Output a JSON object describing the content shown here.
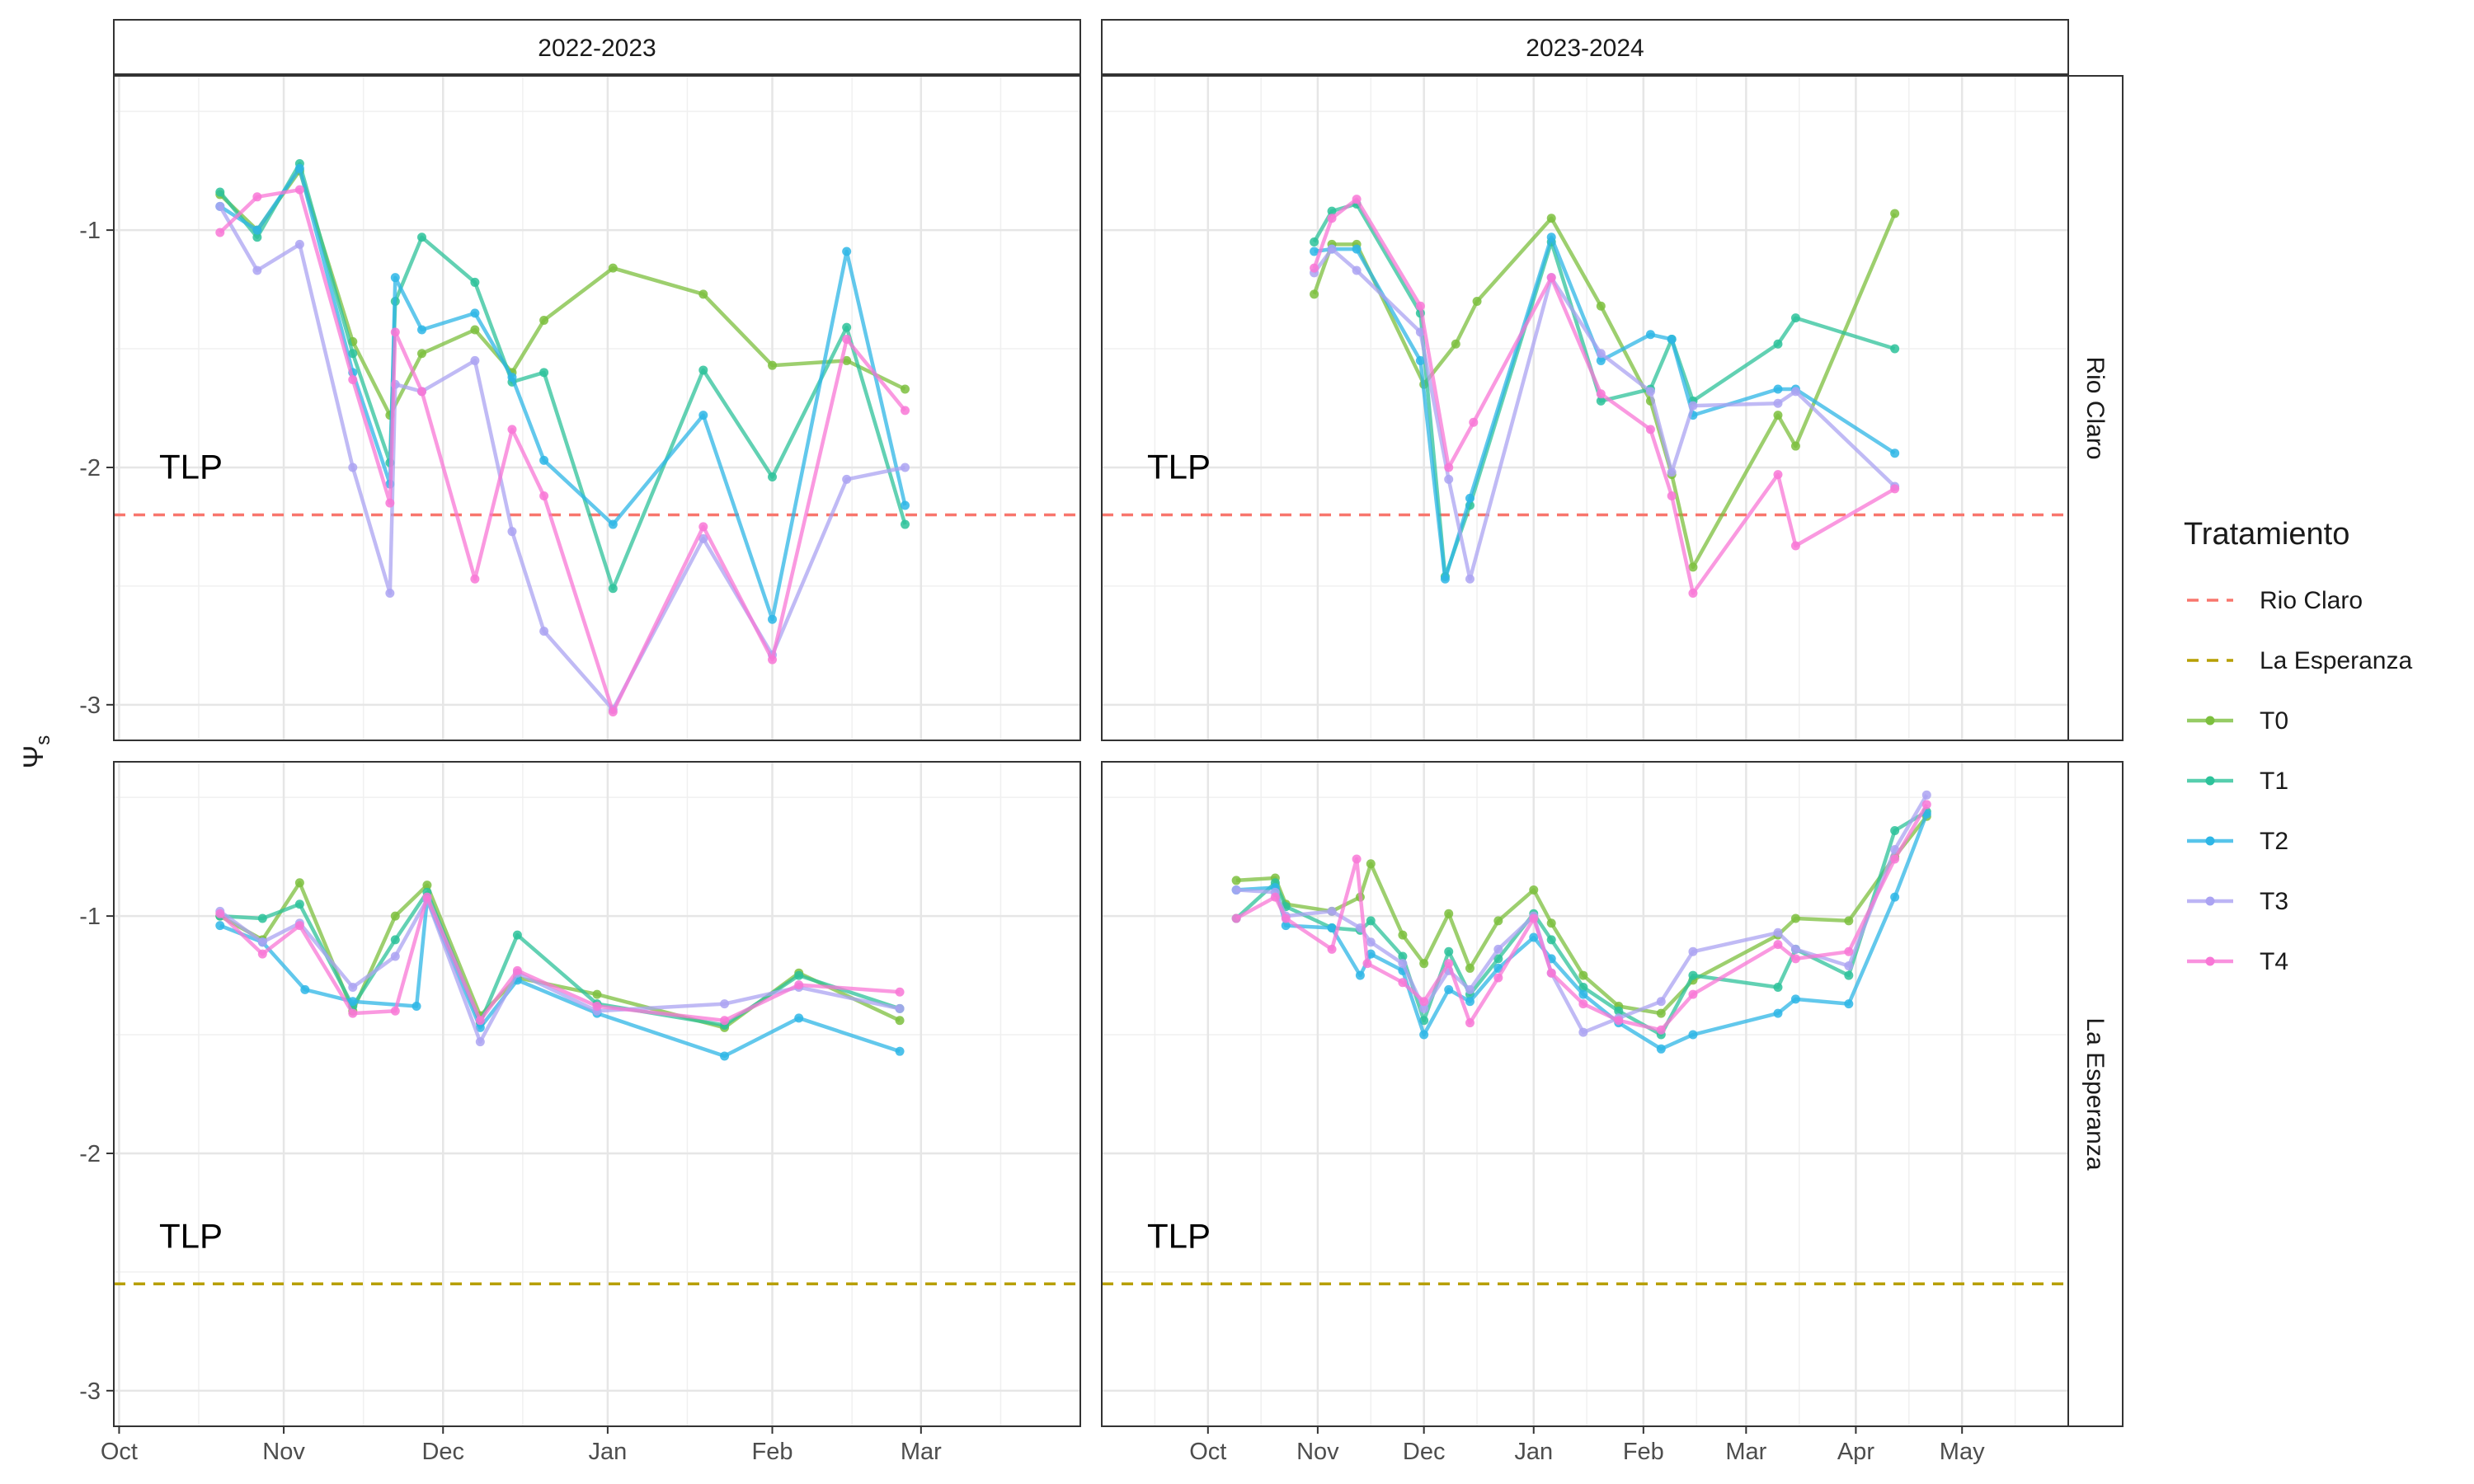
{
  "chart_data": {
    "type": "line",
    "ylabel_symbol": "Ψ",
    "ylabel_subscript": "s",
    "xlabel": "",
    "facet_columns": [
      {
        "label": "2022-2023",
        "ticks": [
          "Oct",
          "Nov",
          "Dec",
          "Jan",
          "Feb",
          "Mar"
        ],
        "xlim": [
          "2022-09-30",
          "2023-03-31"
        ]
      },
      {
        "label": "2023-2024",
        "ticks": [
          "Oct",
          "Nov",
          "Dec",
          "Jan",
          "Feb",
          "Mar",
          "Apr",
          "May"
        ],
        "xlim": [
          "2023-09-01",
          "2024-05-31"
        ]
      }
    ],
    "facet_rows": [
      {
        "label": "Rio Claro",
        "ylim": [
          -3.15,
          -0.35
        ],
        "yticks": [
          -1,
          -2,
          -3
        ],
        "tlp": -2.2
      },
      {
        "label": "La Esperanza",
        "ylim": [
          -3.15,
          -0.35
        ],
        "yticks": [
          -1,
          -2,
          -3
        ],
        "tlp": -2.55
      }
    ],
    "tlp_label": "TLP",
    "legend": {
      "title": "Tratamiento",
      "position": "right",
      "threshold_entries": [
        {
          "name": "Rio Claro",
          "color": "#F8766D"
        },
        {
          "name": "La Esperanza",
          "color": "#B79F00"
        }
      ],
      "series_entries": [
        {
          "name": "T0",
          "color": "#7CBF3E"
        },
        {
          "name": "T1",
          "color": "#2DC29A"
        },
        {
          "name": "T2",
          "color": "#2EB6E6"
        },
        {
          "name": "T3",
          "color": "#ABA3F2"
        },
        {
          "name": "T4",
          "color": "#F877D6"
        }
      ]
    },
    "panels": [
      {
        "row": 0,
        "col": 0,
        "series": [
          {
            "name": "T0",
            "x": [
              "2022-10-20",
              "2022-10-27",
              "2022-11-04",
              "2022-11-14",
              "2022-11-21",
              "2022-11-27",
              "2022-12-07",
              "2022-12-14",
              "2022-12-20",
              "2023-01-02",
              "2023-01-19",
              "2023-02-01",
              "2023-02-15",
              "2023-02-26"
            ],
            "y": [
              -0.85,
              -1.0,
              -0.75,
              -1.47,
              -1.78,
              -1.52,
              -1.42,
              -1.6,
              -1.38,
              -1.16,
              -1.27,
              -1.57,
              -1.55,
              -1.67
            ]
          },
          {
            "name": "T1",
            "x": [
              "2022-10-20",
              "2022-10-27",
              "2022-11-04",
              "2022-11-14",
              "2022-11-21",
              "2022-11-22",
              "2022-11-27",
              "2022-12-07",
              "2022-12-14",
              "2022-12-20",
              "2023-01-02",
              "2023-01-19",
              "2023-02-01",
              "2023-02-15",
              "2023-02-26"
            ],
            "y": [
              -0.84,
              -1.03,
              -0.72,
              -1.52,
              -1.98,
              -1.3,
              -1.03,
              -1.22,
              -1.64,
              -1.6,
              -2.51,
              -1.59,
              -2.04,
              -1.41,
              -2.24
            ]
          },
          {
            "name": "T2",
            "x": [
              "2022-10-20",
              "2022-10-27",
              "2022-11-04",
              "2022-11-14",
              "2022-11-21",
              "2022-11-22",
              "2022-11-27",
              "2022-12-07",
              "2022-12-14",
              "2022-12-20",
              "2023-01-02",
              "2023-01-19",
              "2023-02-01",
              "2023-02-15",
              "2023-02-26"
            ],
            "y": [
              -0.9,
              -1.0,
              -0.74,
              -1.6,
              -2.07,
              -1.2,
              -1.42,
              -1.35,
              -1.62,
              -1.97,
              -2.24,
              -1.78,
              -2.64,
              -1.09,
              -2.16
            ]
          },
          {
            "name": "T3",
            "x": [
              "2022-10-20",
              "2022-10-27",
              "2022-11-04",
              "2022-11-14",
              "2022-11-21",
              "2022-11-22",
              "2022-11-27",
              "2022-12-07",
              "2022-12-14",
              "2022-12-20",
              "2023-01-02",
              "2023-01-19",
              "2023-02-01",
              "2023-02-15",
              "2023-02-26"
            ],
            "y": [
              -0.9,
              -1.17,
              -1.06,
              -2.0,
              -2.53,
              -1.65,
              -1.68,
              -1.55,
              -2.27,
              -2.69,
              -3.02,
              -2.3,
              -2.79,
              -2.05,
              -2.0
            ]
          },
          {
            "name": "T4",
            "x": [
              "2022-10-20",
              "2022-10-27",
              "2022-11-04",
              "2022-11-14",
              "2022-11-21",
              "2022-11-22",
              "2022-11-27",
              "2022-12-07",
              "2022-12-14",
              "2022-12-20",
              "2023-01-02",
              "2023-01-19",
              "2023-02-01",
              "2023-02-15",
              "2023-02-26"
            ],
            "y": [
              -1.01,
              -0.86,
              -0.83,
              -1.63,
              -2.15,
              -1.43,
              -1.68,
              -2.47,
              -1.84,
              -2.12,
              -3.03,
              -2.25,
              -2.81,
              -1.46,
              -1.76
            ]
          }
        ]
      },
      {
        "row": 0,
        "col": 1,
        "series": [
          {
            "name": "T0",
            "x": [
              "2023-10-31",
              "2023-11-05",
              "2023-11-12",
              "2023-12-01",
              "2023-12-10",
              "2023-12-16",
              "2024-01-06",
              "2024-01-20",
              "2024-02-03",
              "2024-02-09",
              "2024-02-15",
              "2024-03-10",
              "2024-03-15",
              "2024-04-12"
            ],
            "y": [
              -1.27,
              -1.06,
              -1.06,
              -1.65,
              -1.48,
              -1.3,
              -0.95,
              -1.32,
              -1.72,
              -2.03,
              -2.42,
              -1.78,
              -1.91,
              -0.93
            ]
          },
          {
            "name": "T1",
            "x": [
              "2023-10-31",
              "2023-11-05",
              "2023-11-12",
              "2023-11-30",
              "2023-12-07",
              "2023-12-14",
              "2024-01-06",
              "2024-01-20",
              "2024-02-03",
              "2024-02-09",
              "2024-02-15",
              "2024-03-10",
              "2024-03-15",
              "2024-04-12"
            ],
            "y": [
              -1.05,
              -0.92,
              -0.89,
              -1.35,
              -2.46,
              -2.16,
              -1.05,
              -1.72,
              -1.67,
              -1.46,
              -1.72,
              -1.48,
              -1.37,
              -1.5
            ]
          },
          {
            "name": "T2",
            "x": [
              "2023-10-31",
              "2023-11-05",
              "2023-11-12",
              "2023-11-30",
              "2023-12-07",
              "2023-12-14",
              "2024-01-06",
              "2024-01-20",
              "2024-02-03",
              "2024-02-09",
              "2024-02-15",
              "2024-03-10",
              "2024-03-15",
              "2024-04-12"
            ],
            "y": [
              -1.09,
              -1.08,
              -1.08,
              -1.55,
              -2.47,
              -2.13,
              -1.03,
              -1.55,
              -1.44,
              -1.46,
              -1.78,
              -1.67,
              -1.67,
              -1.94
            ]
          },
          {
            "name": "T3",
            "x": [
              "2023-10-31",
              "2023-11-05",
              "2023-11-12",
              "2023-11-30",
              "2023-12-08",
              "2023-12-14",
              "2024-01-06",
              "2024-01-20",
              "2024-02-03",
              "2024-02-09",
              "2024-02-15",
              "2024-03-10",
              "2024-03-15",
              "2024-04-12"
            ],
            "y": [
              -1.18,
              -1.08,
              -1.17,
              -1.43,
              -2.05,
              -2.47,
              -1.2,
              -1.52,
              -1.68,
              -2.02,
              -1.74,
              -1.73,
              -1.68,
              -2.08
            ]
          },
          {
            "name": "T4",
            "x": [
              "2023-10-31",
              "2023-11-05",
              "2023-11-12",
              "2023-11-30",
              "2023-12-08",
              "2023-12-15",
              "2024-01-06",
              "2024-01-20",
              "2024-02-03",
              "2024-02-09",
              "2024-02-15",
              "2024-03-10",
              "2024-03-15",
              "2024-04-12"
            ],
            "y": [
              -1.16,
              -0.95,
              -0.87,
              -1.32,
              -2.0,
              -1.81,
              -1.2,
              -1.69,
              -1.84,
              -2.12,
              -2.53,
              -2.03,
              -2.33,
              -2.09
            ]
          }
        ]
      },
      {
        "row": 1,
        "col": 0,
        "series": [
          {
            "name": "T0",
            "x": [
              "2022-10-20",
              "2022-10-28",
              "2022-11-04",
              "2022-11-14",
              "2022-11-22",
              "2022-11-28",
              "2022-12-08",
              "2022-12-15",
              "2022-12-30",
              "2023-01-23",
              "2023-02-06",
              "2023-02-25"
            ],
            "y": [
              -1.0,
              -1.1,
              -0.86,
              -1.4,
              -1.0,
              -0.87,
              -1.42,
              -1.26,
              -1.33,
              -1.47,
              -1.24,
              -1.44
            ]
          },
          {
            "name": "T1",
            "x": [
              "2022-10-20",
              "2022-10-28",
              "2022-11-04",
              "2022-11-14",
              "2022-11-22",
              "2022-11-28",
              "2022-12-08",
              "2022-12-15",
              "2022-12-30",
              "2023-01-23",
              "2023-02-06",
              "2023-02-25"
            ],
            "y": [
              -1.0,
              -1.01,
              -0.95,
              -1.38,
              -1.1,
              -0.9,
              -1.45,
              -1.08,
              -1.37,
              -1.46,
              -1.25,
              -1.39
            ]
          },
          {
            "name": "T2",
            "x": [
              "2022-10-20",
              "2022-10-28",
              "2022-11-05",
              "2022-11-14",
              "2022-11-26",
              "2022-11-28",
              "2022-12-08",
              "2022-12-15",
              "2022-12-30",
              "2023-01-23",
              "2023-02-06",
              "2023-02-25"
            ],
            "y": [
              -1.04,
              -1.11,
              -1.31,
              -1.36,
              -1.38,
              -0.93,
              -1.47,
              -1.27,
              -1.41,
              -1.59,
              -1.43,
              -1.57
            ]
          },
          {
            "name": "T3",
            "x": [
              "2022-10-20",
              "2022-10-28",
              "2022-11-04",
              "2022-11-14",
              "2022-11-22",
              "2022-11-28",
              "2022-12-08",
              "2022-12-15",
              "2022-12-30",
              "2023-01-23",
              "2023-02-06",
              "2023-02-25"
            ],
            "y": [
              -0.98,
              -1.11,
              -1.03,
              -1.3,
              -1.17,
              -0.93,
              -1.53,
              -1.24,
              -1.4,
              -1.37,
              -1.3,
              -1.39
            ]
          },
          {
            "name": "T4",
            "x": [
              "2022-10-20",
              "2022-10-28",
              "2022-11-04",
              "2022-11-14",
              "2022-11-22",
              "2022-11-28",
              "2022-12-08",
              "2022-12-15",
              "2022-12-30",
              "2023-01-23",
              "2023-02-06",
              "2023-02-25"
            ],
            "y": [
              -0.99,
              -1.16,
              -1.04,
              -1.41,
              -1.4,
              -0.92,
              -1.44,
              -1.23,
              -1.38,
              -1.44,
              -1.29,
              -1.32
            ]
          }
        ]
      },
      {
        "row": 1,
        "col": 1,
        "series": [
          {
            "name": "T0",
            "x": [
              "2023-10-09",
              "2023-10-20",
              "2023-10-23",
              "2023-11-05",
              "2023-11-13",
              "2023-11-16",
              "2023-11-25",
              "2023-12-01",
              "2023-12-08",
              "2023-12-14",
              "2023-12-22",
              "2024-01-01",
              "2024-01-06",
              "2024-01-15",
              "2024-01-25",
              "2024-02-06",
              "2024-02-15",
              "2024-03-10",
              "2024-03-15",
              "2024-03-30",
              "2024-04-12",
              "2024-04-21"
            ],
            "y": [
              -0.85,
              -0.84,
              -0.95,
              -0.98,
              -0.92,
              -0.78,
              -1.08,
              -1.2,
              -0.99,
              -1.22,
              -1.02,
              -0.89,
              -1.03,
              -1.25,
              -1.38,
              -1.41,
              -1.27,
              -1.08,
              -1.01,
              -1.02,
              -0.75,
              -0.58
            ]
          },
          {
            "name": "T1",
            "x": [
              "2023-10-09",
              "2023-10-20",
              "2023-10-23",
              "2023-11-05",
              "2023-11-13",
              "2023-11-16",
              "2023-11-25",
              "2023-12-01",
              "2023-12-08",
              "2023-12-14",
              "2023-12-22",
              "2024-01-01",
              "2024-01-06",
              "2024-01-15",
              "2024-01-25",
              "2024-02-06",
              "2024-02-15",
              "2024-03-10",
              "2024-03-15",
              "2024-03-30",
              "2024-04-12",
              "2024-04-21"
            ],
            "y": [
              -1.01,
              -0.86,
              -0.96,
              -1.05,
              -1.06,
              -1.02,
              -1.17,
              -1.44,
              -1.15,
              -1.33,
              -1.18,
              -0.99,
              -1.1,
              -1.3,
              -1.4,
              -1.5,
              -1.25,
              -1.3,
              -1.14,
              -1.25,
              -0.64,
              -0.56
            ]
          },
          {
            "name": "T2",
            "x": [
              "2023-10-09",
              "2023-10-20",
              "2023-10-23",
              "2023-11-05",
              "2023-11-13",
              "2023-11-16",
              "2023-11-25",
              "2023-12-01",
              "2023-12-08",
              "2023-12-14",
              "2023-12-22",
              "2024-01-01",
              "2024-01-06",
              "2024-01-15",
              "2024-01-25",
              "2024-02-06",
              "2024-02-15",
              "2024-03-10",
              "2024-03-15",
              "2024-03-30",
              "2024-04-12",
              "2024-04-21"
            ],
            "y": [
              -0.89,
              -0.88,
              -1.04,
              -1.05,
              -1.25,
              -1.16,
              -1.23,
              -1.5,
              -1.31,
              -1.36,
              -1.22,
              -1.09,
              -1.18,
              -1.33,
              -1.45,
              -1.56,
              -1.5,
              -1.41,
              -1.35,
              -1.37,
              -0.92,
              -0.57
            ]
          },
          {
            "name": "T3",
            "x": [
              "2023-10-09",
              "2023-10-20",
              "2023-10-23",
              "2023-11-05",
              "2023-11-13",
              "2023-11-16",
              "2023-11-25",
              "2023-12-01",
              "2023-12-08",
              "2023-12-14",
              "2023-12-22",
              "2024-01-01",
              "2024-01-06",
              "2024-01-15",
              "2024-01-25",
              "2024-02-06",
              "2024-02-15",
              "2024-03-10",
              "2024-03-15",
              "2024-03-30",
              "2024-04-12",
              "2024-04-21"
            ],
            "y": [
              -0.89,
              -0.9,
              -1.0,
              -0.98,
              -1.05,
              -1.11,
              -1.2,
              -1.39,
              -1.23,
              -1.31,
              -1.14,
              -1.0,
              -1.24,
              -1.49,
              -1.43,
              -1.36,
              -1.15,
              -1.07,
              -1.14,
              -1.21,
              -0.72,
              -0.49
            ]
          },
          {
            "name": "T4",
            "x": [
              "2023-10-09",
              "2023-10-20",
              "2023-10-23",
              "2023-11-05",
              "2023-11-12",
              "2023-11-15",
              "2023-11-25",
              "2023-12-01",
              "2023-12-08",
              "2023-12-14",
              "2023-12-22",
              "2024-01-01",
              "2024-01-06",
              "2024-01-15",
              "2024-01-25",
              "2024-02-06",
              "2024-02-15",
              "2024-03-10",
              "2024-03-15",
              "2024-03-30",
              "2024-04-12",
              "2024-04-21"
            ],
            "y": [
              -1.01,
              -0.92,
              -1.01,
              -1.14,
              -0.76,
              -1.2,
              -1.28,
              -1.36,
              -1.2,
              -1.45,
              -1.26,
              -1.01,
              -1.24,
              -1.37,
              -1.44,
              -1.48,
              -1.33,
              -1.12,
              -1.18,
              -1.15,
              -0.76,
              -0.53
            ]
          }
        ]
      }
    ]
  }
}
